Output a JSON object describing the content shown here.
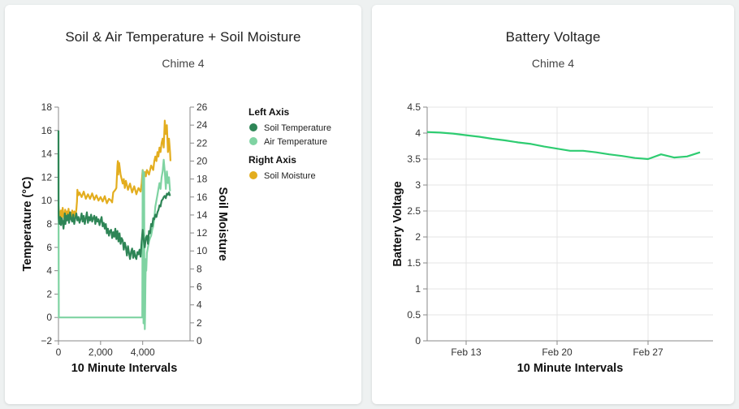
{
  "cards": [
    {
      "title": "Soil & Air Temperature + Soil Moisture",
      "subtitle": "Chime 4"
    },
    {
      "title": "Battery Voltage",
      "subtitle": "Chime 4"
    }
  ],
  "colors": {
    "soil_temperature": "#2e8556",
    "air_temperature": "#7fd3a2",
    "soil_moisture": "#e3ad1e",
    "battery": "#2ecc71",
    "grid": "#e4e4e4",
    "axis": "#888888"
  },
  "chart_data": [
    {
      "type": "line",
      "title": "Soil & Air Temperature + Soil Moisture",
      "subtitle": "Chime 4",
      "xlabel": "10 Minute Intervals",
      "ylabel_left": "Temperature (°C)",
      "ylabel_right": "Soil Moisture",
      "xlim": [
        0,
        5400
      ],
      "ylim_left": [
        -2,
        18
      ],
      "ylim_right": [
        0,
        26
      ],
      "x_ticks": [
        0,
        2000,
        4000
      ],
      "x_tick_labels": [
        "0",
        "2,000",
        "4,000"
      ],
      "y_left_ticks": [
        -2,
        0,
        2,
        4,
        6,
        8,
        10,
        12,
        14,
        16,
        18
      ],
      "y_left_tick_labels": [
        "−2",
        "0",
        "2",
        "4",
        "6",
        "8",
        "10",
        "12",
        "14",
        "16",
        "18"
      ],
      "y_right_ticks": [
        0,
        2,
        4,
        6,
        8,
        10,
        12,
        14,
        16,
        18,
        20,
        22,
        24,
        26
      ],
      "y_right_tick_labels": [
        "0",
        "2",
        "4",
        "6",
        "8",
        "10",
        "12",
        "14",
        "16",
        "18",
        "20",
        "22",
        "24",
        "26"
      ],
      "grid": false,
      "legend": {
        "placement": "right",
        "groups": [
          {
            "title": "Left Axis",
            "items": [
              "Soil Temperature",
              "Air Temperature"
            ]
          },
          {
            "title": "Right Axis",
            "items": [
              "Soil Moisture"
            ]
          }
        ]
      },
      "series": [
        {
          "name": "Soil Temperature",
          "axis": "left",
          "x": [
            0,
            5,
            10,
            40,
            80,
            120,
            160,
            200,
            240,
            280,
            300,
            330,
            360,
            400,
            450,
            500,
            550,
            600,
            650,
            700,
            750,
            800,
            850,
            900,
            950,
            1000,
            1050,
            1100,
            1150,
            1200,
            1250,
            1300,
            1350,
            1400,
            1450,
            1500,
            1550,
            1600,
            1650,
            1700,
            1750,
            1800,
            1850,
            1900,
            1950,
            2000,
            2050,
            2100,
            2150,
            2200,
            2250,
            2300,
            2350,
            2400,
            2450,
            2500,
            2550,
            2600,
            2650,
            2700,
            2750,
            2800,
            2850,
            2900,
            2950,
            3000,
            3050,
            3100,
            3150,
            3200,
            3250,
            3300,
            3350,
            3400,
            3450,
            3500,
            3550,
            3600,
            3650,
            3700,
            3750,
            3800,
            3850,
            3900,
            3950,
            4000,
            4050,
            4100,
            4150,
            4200,
            4250,
            4300,
            4350,
            4400,
            4450,
            4500,
            4550,
            4600,
            4650,
            4700,
            4750,
            4800,
            4850,
            4900,
            4950,
            5000,
            5050,
            5100,
            5150,
            5200,
            5250,
            5300
          ],
          "y": [
            16,
            9,
            8.5,
            8.0,
            8.6,
            7.9,
            8.5,
            8.2,
            7.6,
            8.4,
            8.9,
            8.0,
            8.7,
            8.3,
            8.8,
            8.1,
            9.0,
            8.4,
            8.2,
            8.8,
            8.0,
            8.5,
            8.9,
            8.3,
            8.6,
            8.1,
            8.4,
            8.9,
            8.2,
            8.7,
            8.0,
            8.5,
            9.0,
            8.1,
            8.6,
            8.3,
            8.8,
            8.2,
            8.5,
            8.7,
            8.0,
            8.6,
            8.2,
            8.4,
            7.9,
            8.3,
            8.6,
            7.8,
            8.1,
            7.6,
            8.0,
            7.2,
            7.6,
            7.0,
            7.4,
            7.5,
            6.8,
            7.3,
            6.9,
            7.6,
            6.7,
            7.4,
            6.5,
            7.2,
            6.3,
            6.8,
            6.6,
            5.8,
            6.4,
            6.0,
            5.3,
            6.1,
            5.5,
            5.0,
            5.6,
            5.9,
            5.1,
            5.7,
            5.2,
            5.0,
            5.6,
            5.4,
            5.8,
            5.2,
            6.5,
            7.5,
            6.6,
            6.0,
            6.8,
            7.0,
            6.3,
            7.4,
            7.2,
            8.0,
            7.8,
            8.5,
            8.4,
            8.8,
            8.6,
            9.0,
            9.2,
            9.6,
            9.5,
            10.0,
            10.1,
            10.3,
            10.4,
            10.2,
            10.6,
            10.5,
            10.7,
            10.4
          ]
        },
        {
          "name": "Air Temperature",
          "axis": "left",
          "x": [
            0,
            5,
            15,
            500,
            1000,
            1500,
            2000,
            2500,
            3000,
            3500,
            3980,
            4000,
            4030,
            4040,
            4060,
            4070,
            4080,
            4100,
            4110,
            4130,
            4150,
            4170,
            4200,
            4250,
            4300,
            4350,
            4400,
            4450,
            4500,
            4550,
            4600,
            4650,
            4700,
            4750,
            4800,
            4850,
            4900,
            4950,
            5000,
            5050,
            5100,
            5150,
            5200,
            5250,
            5300
          ],
          "y": [
            14,
            9.0,
            0,
            0,
            0,
            0,
            0,
            0,
            0,
            0,
            0,
            12.6,
            12.2,
            -0.5,
            5.0,
            12.4,
            3.0,
            -1.0,
            0.0,
            3.0,
            5.0,
            4.0,
            5.5,
            6.0,
            6.5,
            6.8,
            7.0,
            7.5,
            7.8,
            8.5,
            9.5,
            10.0,
            10.5,
            11.0,
            11.5,
            11.0,
            12.0,
            12.5,
            13.5,
            12.5,
            11.0,
            12.5,
            11.5,
            12.0,
            10.8
          ]
        },
        {
          "name": "Soil Moisture",
          "axis": "right",
          "x": [
            0,
            40,
            80,
            120,
            160,
            200,
            240,
            280,
            320,
            360,
            400,
            440,
            480,
            520,
            560,
            600,
            650,
            700,
            750,
            800,
            850,
            880,
            900,
            950,
            1000,
            1100,
            1200,
            1300,
            1400,
            1500,
            1600,
            1700,
            1800,
            1900,
            2000,
            2100,
            2200,
            2300,
            2400,
            2500,
            2550,
            2600,
            2700,
            2750,
            2800,
            2820,
            2840,
            2880,
            2950,
            3000,
            3050,
            3100,
            3150,
            3200,
            3300,
            3400,
            3500,
            3600,
            3700,
            3800,
            3900,
            3950,
            3980,
            4000,
            4050,
            4100,
            4150,
            4200,
            4300,
            4400,
            4500,
            4550,
            4600,
            4650,
            4700,
            4750,
            4800,
            4850,
            4900,
            4950,
            5000,
            5050,
            5100,
            5150,
            5200,
            5250,
            5300,
            5320
          ],
          "y": [
            15.0,
            14.2,
            13.8,
            14.5,
            13.5,
            14.8,
            14.0,
            13.6,
            14.6,
            13.8,
            14.4,
            13.5,
            14.7,
            13.8,
            14.3,
            13.6,
            14.5,
            13.9,
            14.4,
            13.8,
            14.6,
            15.5,
            16.8,
            16.2,
            16.5,
            16.0,
            16.6,
            15.8,
            16.3,
            15.8,
            16.4,
            15.7,
            16.2,
            15.6,
            16.0,
            15.5,
            16.1,
            15.3,
            15.8,
            15.6,
            15.4,
            16.5,
            16.8,
            17.0,
            19.5,
            20.0,
            18.5,
            19.8,
            18.5,
            18.0,
            17.5,
            18.0,
            17.0,
            17.8,
            16.8,
            17.5,
            16.5,
            17.2,
            16.3,
            17.0,
            16.6,
            17.5,
            18.5,
            19.0,
            18.0,
            18.8,
            18.3,
            19.0,
            18.5,
            19.5,
            19.0,
            20.0,
            20.5,
            20.0,
            21.0,
            20.5,
            21.5,
            21.0,
            22.0,
            22.5,
            21.5,
            24.5,
            23.0,
            24.0,
            21.0,
            22.5,
            21.0,
            20.0
          ]
        }
      ]
    },
    {
      "type": "line",
      "title": "Battery Voltage",
      "subtitle": "Chime 4",
      "xlabel": "10 Minute Intervals",
      "ylabel": "Battery Voltage",
      "xlim": [
        "2024-02-10",
        "2024-03-03"
      ],
      "ylim": [
        0,
        4.5
      ],
      "x_ticks": [
        "2024-02-13",
        "2024-02-20",
        "2024-02-27"
      ],
      "x_tick_labels": [
        "Feb 13",
        "Feb 20",
        "Feb 27"
      ],
      "y_ticks": [
        0,
        0.5,
        1,
        1.5,
        2,
        2.5,
        3,
        3.5,
        4,
        4.5
      ],
      "y_tick_labels": [
        "0",
        "0.5",
        "1",
        "1.5",
        "2",
        "2.5",
        "3",
        "3.5",
        "4",
        "4.5"
      ],
      "grid": true,
      "series": [
        {
          "name": "Battery Voltage",
          "x": [
            "2024-02-10",
            "2024-02-11",
            "2024-02-12",
            "2024-02-13",
            "2024-02-14",
            "2024-02-15",
            "2024-02-16",
            "2024-02-17",
            "2024-02-18",
            "2024-02-19",
            "2024-02-20",
            "2024-02-21",
            "2024-02-22",
            "2024-02-23",
            "2024-02-24",
            "2024-02-25",
            "2024-02-26",
            "2024-02-27",
            "2024-02-28",
            "2024-02-29",
            "2024-03-01",
            "2024-03-02"
          ],
          "y": [
            4.02,
            4.01,
            3.99,
            3.96,
            3.93,
            3.89,
            3.86,
            3.82,
            3.79,
            3.74,
            3.7,
            3.66,
            3.66,
            3.63,
            3.59,
            3.56,
            3.52,
            3.5,
            3.59,
            3.53,
            3.55,
            3.63
          ]
        }
      ]
    }
  ]
}
